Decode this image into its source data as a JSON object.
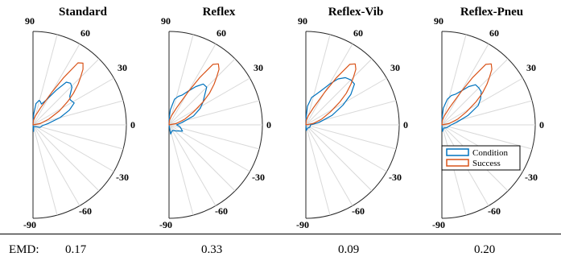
{
  "chart_data": [
    {
      "type": "polar-histogram",
      "title": "Standard",
      "theta_ticks": [
        "90",
        "60",
        "30",
        "0",
        "-30",
        "-60",
        "-90"
      ],
      "theta_range_deg": [
        -90,
        90
      ],
      "grid": true,
      "series": [
        {
          "name": "Condition",
          "color": "#0072BD",
          "points": [
            [
              -85,
              0.07
            ],
            [
              -70,
              0.02
            ],
            [
              -40,
              0.03
            ],
            [
              -20,
              0.08
            ],
            [
              -5,
              0.1
            ],
            [
              5,
              0.16
            ],
            [
              15,
              0.3
            ],
            [
              22,
              0.42
            ],
            [
              28,
              0.5
            ],
            [
              34,
              0.48
            ],
            [
              38,
              0.5
            ],
            [
              44,
              0.58
            ],
            [
              48,
              0.6
            ],
            [
              52,
              0.58
            ],
            [
              56,
              0.45
            ],
            [
              62,
              0.3
            ],
            [
              68,
              0.24
            ],
            [
              72,
              0.26
            ],
            [
              76,
              0.27
            ],
            [
              82,
              0.23
            ],
            [
              86,
              0.12
            ],
            [
              90,
              0.03
            ]
          ]
        },
        {
          "name": "Success",
          "color": "#D95319",
          "points": [
            [
              10,
              0.08
            ],
            [
              20,
              0.18
            ],
            [
              28,
              0.32
            ],
            [
              34,
              0.45
            ],
            [
              38,
              0.55
            ],
            [
              42,
              0.65
            ],
            [
              45,
              0.72
            ],
            [
              48,
              0.8
            ],
            [
              51,
              0.85
            ],
            [
              54,
              0.82
            ],
            [
              57,
              0.6
            ],
            [
              60,
              0.4
            ],
            [
              66,
              0.2
            ],
            [
              75,
              0.1
            ],
            [
              85,
              0.05
            ]
          ]
        }
      ]
    },
    {
      "type": "polar-histogram",
      "title": "Reflex",
      "theta_ticks": [
        "90",
        "60",
        "30",
        "0",
        "-30",
        "-60",
        "-90"
      ],
      "theta_range_deg": [
        -90,
        90
      ],
      "grid": true,
      "series": [
        {
          "name": "Condition",
          "color": "#0072BD",
          "points": [
            [
              -80,
              0.1
            ],
            [
              -60,
              0.07
            ],
            [
              -40,
              0.1
            ],
            [
              -25,
              0.16
            ],
            [
              -10,
              0.12
            ],
            [
              0,
              0.08
            ],
            [
              10,
              0.14
            ],
            [
              20,
              0.28
            ],
            [
              28,
              0.38
            ],
            [
              34,
              0.44
            ],
            [
              40,
              0.5
            ],
            [
              45,
              0.57
            ],
            [
              50,
              0.57
            ],
            [
              55,
              0.5
            ],
            [
              60,
              0.42
            ],
            [
              66,
              0.35
            ],
            [
              72,
              0.32
            ],
            [
              78,
              0.28
            ],
            [
              85,
              0.16
            ],
            [
              90,
              0.05
            ]
          ]
        },
        {
          "name": "Success",
          "color": "#D95319",
          "points": [
            [
              10,
              0.08
            ],
            [
              20,
              0.18
            ],
            [
              28,
              0.3
            ],
            [
              34,
              0.44
            ],
            [
              38,
              0.55
            ],
            [
              42,
              0.65
            ],
            [
              45,
              0.72
            ],
            [
              48,
              0.8
            ],
            [
              51,
              0.84
            ],
            [
              54,
              0.8
            ],
            [
              57,
              0.6
            ],
            [
              60,
              0.4
            ],
            [
              66,
              0.2
            ],
            [
              75,
              0.1
            ],
            [
              85,
              0.05
            ]
          ]
        }
      ]
    },
    {
      "type": "polar-histogram",
      "title": "Reflex-Vib",
      "theta_ticks": [
        "90",
        "60",
        "30",
        "0",
        "-30",
        "-60",
        "-90"
      ],
      "theta_range_deg": [
        -90,
        90
      ],
      "grid": true,
      "series": [
        {
          "name": "Condition",
          "color": "#0072BD",
          "points": [
            [
              -85,
              0.06
            ],
            [
              -60,
              0.04
            ],
            [
              -30,
              0.05
            ],
            [
              0,
              0.05
            ],
            [
              10,
              0.14
            ],
            [
              20,
              0.3
            ],
            [
              28,
              0.45
            ],
            [
              34,
              0.58
            ],
            [
              40,
              0.68
            ],
            [
              45,
              0.68
            ],
            [
              50,
              0.66
            ],
            [
              55,
              0.6
            ],
            [
              60,
              0.5
            ],
            [
              66,
              0.4
            ],
            [
              72,
              0.34
            ],
            [
              78,
              0.3
            ],
            [
              85,
              0.2
            ],
            [
              90,
              0.05
            ]
          ]
        },
        {
          "name": "Success",
          "color": "#D95319",
          "points": [
            [
              10,
              0.08
            ],
            [
              20,
              0.18
            ],
            [
              28,
              0.3
            ],
            [
              34,
              0.44
            ],
            [
              38,
              0.55
            ],
            [
              42,
              0.65
            ],
            [
              45,
              0.72
            ],
            [
              48,
              0.8
            ],
            [
              51,
              0.84
            ],
            [
              54,
              0.8
            ],
            [
              57,
              0.6
            ],
            [
              60,
              0.4
            ],
            [
              66,
              0.2
            ],
            [
              75,
              0.1
            ],
            [
              85,
              0.05
            ]
          ]
        }
      ]
    },
    {
      "type": "polar-histogram",
      "title": "Reflex-Pneu",
      "theta_ticks": [
        "90",
        "60",
        "30",
        "0",
        "-30",
        "-60",
        "-90"
      ],
      "theta_range_deg": [
        -90,
        90
      ],
      "grid": true,
      "legend": {
        "position": "lower-right",
        "entries": [
          "Condition",
          "Success"
        ]
      },
      "series": [
        {
          "name": "Condition",
          "color": "#0072BD",
          "points": [
            [
              -85,
              0.07
            ],
            [
              -60,
              0.04
            ],
            [
              -30,
              0.06
            ],
            [
              -10,
              0.08
            ],
            [
              0,
              0.1
            ],
            [
              10,
              0.16
            ],
            [
              20,
              0.3
            ],
            [
              28,
              0.44
            ],
            [
              34,
              0.5
            ],
            [
              40,
              0.55
            ],
            [
              45,
              0.56
            ],
            [
              50,
              0.56
            ],
            [
              55,
              0.5
            ],
            [
              60,
              0.42
            ],
            [
              66,
              0.36
            ],
            [
              72,
              0.33
            ],
            [
              78,
              0.28
            ],
            [
              85,
              0.18
            ],
            [
              90,
              0.05
            ]
          ]
        },
        {
          "name": "Success",
          "color": "#D95319",
          "points": [
            [
              10,
              0.08
            ],
            [
              20,
              0.18
            ],
            [
              28,
              0.3
            ],
            [
              34,
              0.44
            ],
            [
              38,
              0.55
            ],
            [
              42,
              0.65
            ],
            [
              45,
              0.72
            ],
            [
              48,
              0.8
            ],
            [
              51,
              0.84
            ],
            [
              54,
              0.8
            ],
            [
              57,
              0.6
            ],
            [
              60,
              0.4
            ],
            [
              66,
              0.2
            ],
            [
              75,
              0.1
            ],
            [
              85,
              0.05
            ]
          ]
        }
      ]
    }
  ],
  "emd": {
    "label": "EMD:",
    "values": [
      "0.17",
      "0.33",
      "0.09",
      "0.20"
    ]
  }
}
